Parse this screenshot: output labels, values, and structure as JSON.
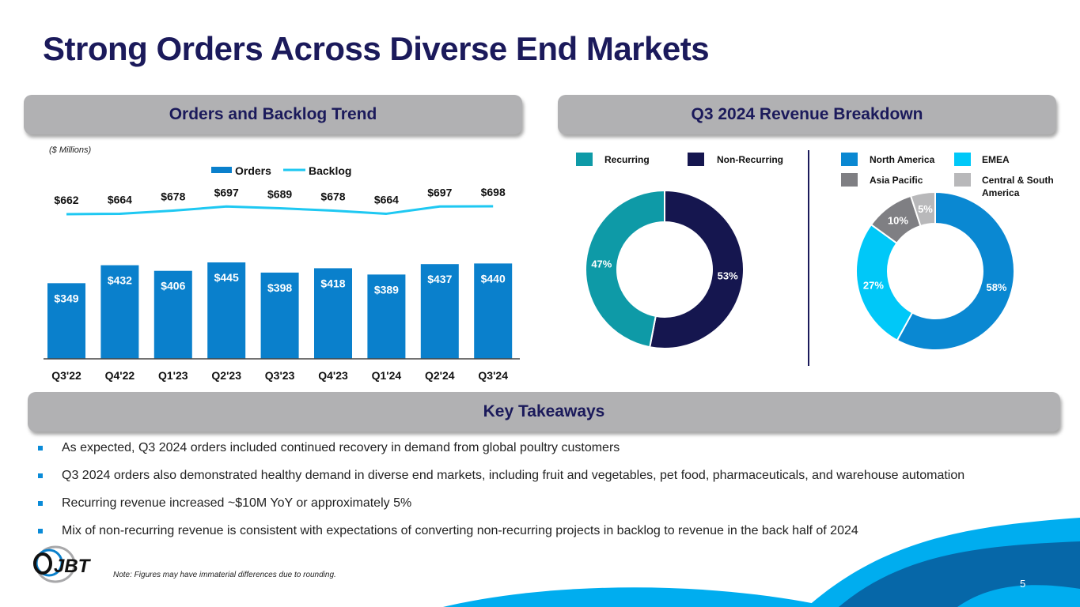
{
  "title": "Strong Orders Across Diverse End Markets",
  "sections": {
    "orders_header": "Orders and Backlog Trend",
    "revenue_header": "Q3 2024 Revenue Breakdown",
    "takeaways_header": "Key Takeaways"
  },
  "units_label": "($ Millions)",
  "colors": {
    "navy": "#1b1a5b",
    "orders_blue": "#0a80cc",
    "backlog_cyan": "#1ec8f2",
    "recurring_teal": "#0e9aa7",
    "nonrecurring_navy": "#15164f",
    "north_america": "#0a88d2",
    "emea": "#00c8f8",
    "asia_pacific": "#7f7f83",
    "central_south_america": "#b8b8ba"
  },
  "chart_data": [
    {
      "type": "bar",
      "title": "Orders and Backlog Trend",
      "categories": [
        "Q3'22",
        "Q4'22",
        "Q1'23",
        "Q2'23",
        "Q3'23",
        "Q4'23",
        "Q1'24",
        "Q2'24",
        "Q3'24"
      ],
      "series": [
        {
          "name": "Orders",
          "type": "bar",
          "values": [
            349,
            432,
            406,
            445,
            398,
            418,
            389,
            437,
            440
          ],
          "labels": [
            "$349",
            "$432",
            "$406",
            "$445",
            "$398",
            "$418",
            "$389",
            "$437",
            "$440"
          ]
        },
        {
          "name": "Backlog",
          "type": "line",
          "values": [
            662,
            664,
            678,
            697,
            689,
            678,
            664,
            697,
            698
          ],
          "labels": [
            "$662",
            "$664",
            "$678",
            "$697",
            "$689",
            "$678",
            "$664",
            "$697",
            "$698"
          ]
        }
      ],
      "legend": [
        "Orders",
        "Backlog"
      ],
      "legend_position": "top",
      "ylabel": "($ Millions)",
      "grid": false
    },
    {
      "type": "pie",
      "title": "Recurring vs Non-Recurring",
      "categories": [
        "Recurring",
        "Non-Recurring"
      ],
      "values": [
        47,
        53
      ],
      "labels": [
        "47%",
        "53%"
      ],
      "donut": true
    },
    {
      "type": "pie",
      "title": "Revenue by Region",
      "categories": [
        "North America",
        "EMEA",
        "Asia Pacific",
        "Central & South America"
      ],
      "values": [
        58,
        27,
        10,
        5
      ],
      "labels": [
        "58%",
        "27%",
        "10%",
        "5%"
      ],
      "donut": true
    }
  ],
  "takeaways": [
    "As expected, Q3 2024 orders included continued recovery in demand from global poultry customers",
    "Q3 2024 orders also demonstrated healthy demand in diverse end markets, including fruit and vegetables, pet food, pharmaceuticals, and warehouse automation",
    "Recurring revenue increased ~$10M YoY or approximately 5%",
    "Mix of non-recurring revenue is consistent with expectations of converting non-recurring projects in backlog to revenue in the back half of 2024"
  ],
  "footer": {
    "note": "Note: Figures may have immaterial differences due to rounding.",
    "logo_text": "JBT",
    "page_number": "5"
  }
}
